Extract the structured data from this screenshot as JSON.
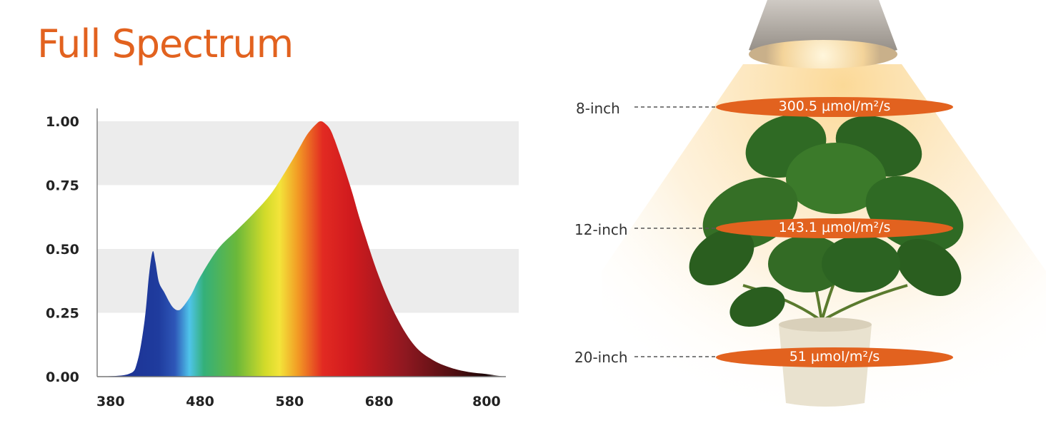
{
  "title": "Full Spectrum",
  "chart_data": {
    "type": "area",
    "title": "Full Spectrum",
    "xlabel": "",
    "ylabel": "",
    "xlim": [
      365,
      820
    ],
    "ylim": [
      0,
      1.0
    ],
    "x_ticks": [
      "380",
      "480",
      "580",
      "680",
      "800"
    ],
    "y_ticks": [
      "0.00",
      "0.25",
      "0.50",
      "0.75",
      "1.00"
    ],
    "grid": "alternating horizontal bands",
    "series": [
      {
        "x": [
          365,
          400,
          410,
          418,
          423,
          427,
          430,
          434,
          440,
          446,
          450,
          455,
          460,
          470,
          480,
          500,
          520,
          540,
          560,
          580,
          590,
          600,
          610,
          615,
          620,
          625,
          630,
          640,
          650,
          660,
          680,
          700,
          720,
          740,
          760,
          780,
          800,
          820
        ],
        "y": [
          0.0,
          0.01,
          0.06,
          0.22,
          0.4,
          0.49,
          0.45,
          0.37,
          0.33,
          0.29,
          0.27,
          0.26,
          0.27,
          0.32,
          0.39,
          0.5,
          0.57,
          0.64,
          0.72,
          0.83,
          0.89,
          0.95,
          0.99,
          1.0,
          0.99,
          0.97,
          0.93,
          0.83,
          0.72,
          0.6,
          0.39,
          0.23,
          0.12,
          0.065,
          0.035,
          0.018,
          0.01,
          0.0
        ]
      }
    ]
  },
  "measurements": [
    {
      "distance": "8-inch",
      "ppfd": "300.5 μmol/m²/s"
    },
    {
      "distance": "12-inch",
      "ppfd": "143.1 μmol/m²/s"
    },
    {
      "distance": "20-inch",
      "ppfd": "51 μmol/m²/s"
    }
  ],
  "colors": {
    "accent": "#e2621f",
    "band": "#ececec"
  }
}
